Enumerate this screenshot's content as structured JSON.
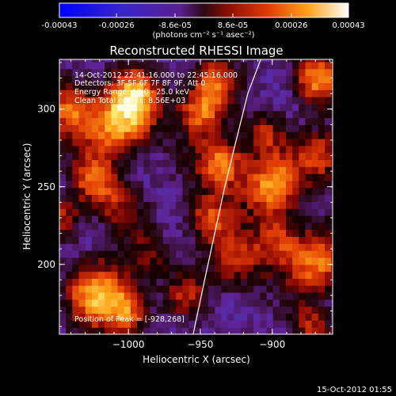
{
  "colorbar": {
    "ticks": [
      "-0.00043",
      "-0.00026",
      "-8.6e-05",
      "8.6e-05",
      "0.00026",
      "0.00043"
    ],
    "tick_values": [
      -0.00043,
      -0.00026,
      -8.6e-05,
      8.6e-05,
      0.00026,
      0.00043
    ],
    "range": [
      -0.00043,
      0.00043
    ],
    "units_label": "(photons cm⁻² s⁻¹ asec⁻²)"
  },
  "chart_data": {
    "type": "heatmap",
    "title": "Reconstructed RHESSI Image",
    "xlabel": "Heliocentric X (arcsec)",
    "ylabel": "Heliocentric Y (arcsec)",
    "xlim": [
      -1048,
      -858
    ],
    "ylim": [
      155,
      332
    ],
    "x_ticks": [
      -1000,
      -950,
      -900
    ],
    "x_tick_labels": [
      "−1000",
      "−950",
      "−900"
    ],
    "y_ticks": [
      200,
      250,
      300
    ],
    "y_tick_labels": [
      "200",
      "250",
      "300"
    ],
    "limb": [
      [
        -955,
        155
      ],
      [
        -947,
        190
      ],
      [
        -940,
        220
      ],
      [
        -933,
        250
      ],
      [
        -925,
        280
      ],
      [
        -917,
        310
      ],
      [
        -908,
        332
      ]
    ],
    "peak": [
      -928,
      268
    ],
    "annotations": [
      "14-Oct-2012 22:41:16.000 to 22:45:16.000",
      "Detectors: 3F 5F 6F 7F 8F 9F, Att 0",
      "Energy Range: 12.0 - 25.0 keV",
      "Clean    Total counts: 8.56E+03",
      "Position of Peak = [-928,268]"
    ],
    "colormap": "blue-purple-red-orange-yellow-white"
  },
  "footer": {
    "date": "15-Oct-2012 01:55"
  }
}
